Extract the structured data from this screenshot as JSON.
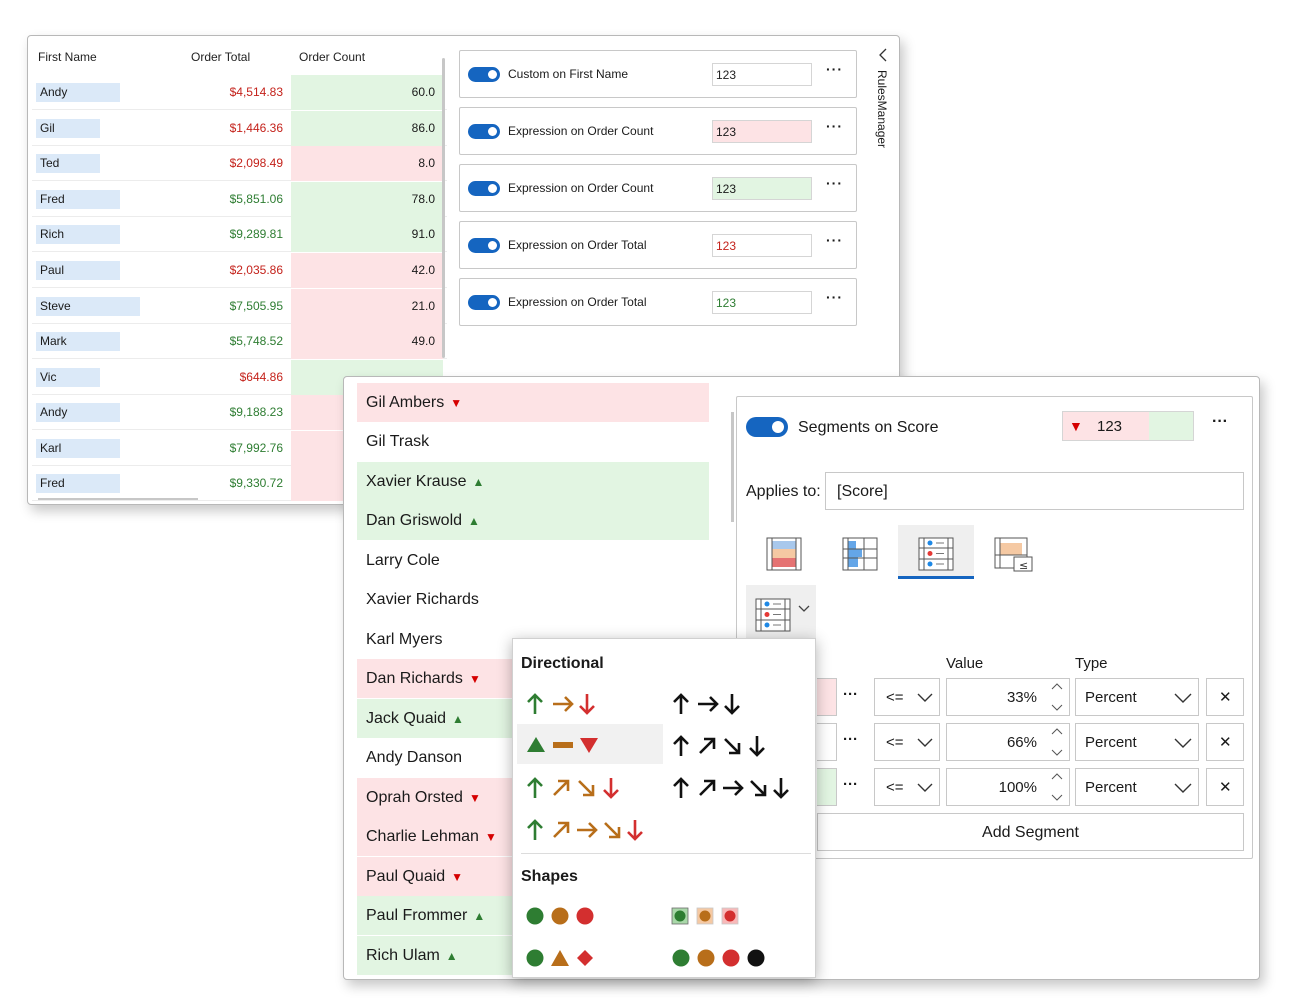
{
  "grid": {
    "headers": {
      "first_name": "First Name",
      "order_total": "Order Total",
      "order_count": "Order Count"
    },
    "rows": [
      {
        "name": "Andy",
        "total": "$4,514.83",
        "count": "60.0"
      },
      {
        "name": "Gil",
        "total": "$1,446.36",
        "count": "86.0"
      },
      {
        "name": "Ted",
        "total": "$2,098.49",
        "count": "8.0"
      },
      {
        "name": "Fred",
        "total": "$5,851.06",
        "count": "78.0"
      },
      {
        "name": "Rich",
        "total": "$9,289.81",
        "count": "91.0"
      },
      {
        "name": "Paul",
        "total": "$2,035.86",
        "count": "42.0"
      },
      {
        "name": "Steve",
        "total": "$7,505.95",
        "count": "21.0"
      },
      {
        "name": "Mark",
        "total": "$5,748.52",
        "count": "49.0"
      },
      {
        "name": "Vic",
        "total": "$644.86",
        "count": ""
      },
      {
        "name": "Andy",
        "total": "$9,188.23",
        "count": ""
      },
      {
        "name": "Karl",
        "total": "$7,992.76",
        "count": ""
      },
      {
        "name": "Fred",
        "total": "$9,330.72",
        "count": ""
      }
    ]
  },
  "rules": {
    "items": [
      {
        "label": "Custom on First Name",
        "preview": "123"
      },
      {
        "label": "Expression on Order Count",
        "preview": "123"
      },
      {
        "label": "Expression on Order Count",
        "preview": "123"
      },
      {
        "label": "Expression on Order Total",
        "preview": "123"
      },
      {
        "label": "Expression on Order Total",
        "preview": "123"
      }
    ],
    "more": "···",
    "tab_label": "RulesManager"
  },
  "people": [
    {
      "name": "Gil Ambers",
      "icon": "▼"
    },
    {
      "name": "Gil Trask",
      "icon": ""
    },
    {
      "name": "Xavier Krause",
      "icon": "▲"
    },
    {
      "name": "Dan Griswold",
      "icon": "▲"
    },
    {
      "name": "Larry Cole",
      "icon": ""
    },
    {
      "name": "Xavier Richards",
      "icon": ""
    },
    {
      "name": "Karl Myers",
      "icon": ""
    },
    {
      "name": "Dan Richards",
      "icon": "▼"
    },
    {
      "name": "Jack Quaid",
      "icon": "▲"
    },
    {
      "name": "Andy Danson",
      "icon": ""
    },
    {
      "name": "Oprah Orsted",
      "icon": "▼"
    },
    {
      "name": "Charlie Lehman",
      "icon": "▼"
    },
    {
      "name": "Paul Quaid",
      "icon": "▼"
    },
    {
      "name": "Paul Frommer",
      "icon": "▲"
    },
    {
      "name": "Rich Ulam",
      "icon": "▲"
    }
  ],
  "segment_rule": {
    "title": "Segments on Score",
    "preview_icon": "▼",
    "preview_value": "123",
    "more": "···",
    "applies_label": "Applies to:",
    "applies_value": "[Score]",
    "value_header": "Value",
    "type_header": "Type",
    "segments": [
      {
        "op": "<=",
        "value": "33%",
        "type": "Percent"
      },
      {
        "op": "<=",
        "value": "66%",
        "type": "Percent"
      },
      {
        "op": "<=",
        "value": "100%",
        "type": "Percent"
      }
    ],
    "more_btn": "···",
    "remove_icon": "✕",
    "add_label": "Add Segment"
  },
  "iconset_popup": {
    "directional_header": "Directional",
    "shapes_header": "Shapes"
  },
  "colors": {
    "accent": "#1565c0",
    "positive_bg": "#e2f5e2",
    "negative_bg": "#fde3e5",
    "positive_text": "#2e7d32",
    "negative_text": "#c4221b"
  }
}
